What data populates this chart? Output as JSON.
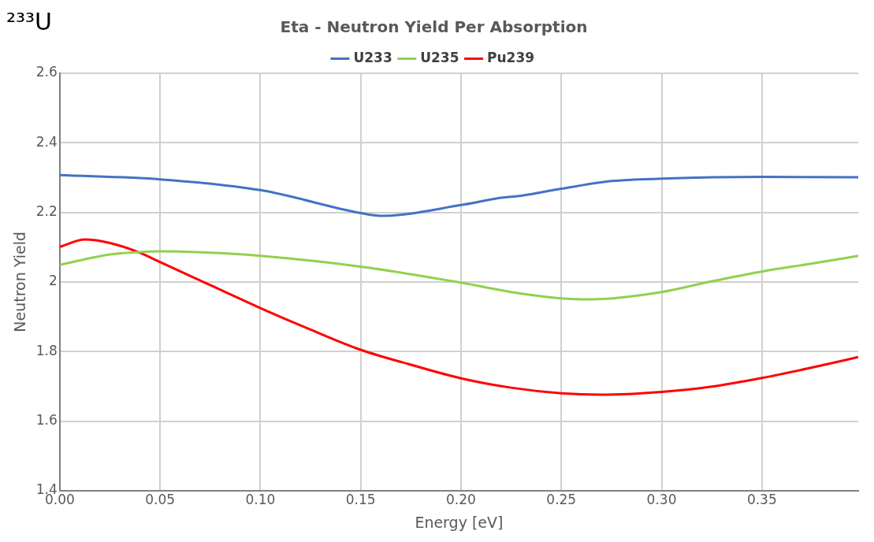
{
  "chart_data": {
    "type": "line",
    "title": "Eta - Neutron Yield Per Absorption",
    "xlabel": "Energy [eV]",
    "ylabel": "Neutron Yield",
    "annotations": [
      "²³³U"
    ],
    "xlim": [
      0,
      0.398
    ],
    "xticks": [
      {
        "value": 0,
        "label": "0.00"
      },
      {
        "value": 0.05,
        "label": "0.05"
      },
      {
        "value": 0.1,
        "label": "0.10"
      },
      {
        "value": 0.15,
        "label": "0.15"
      },
      {
        "value": 0.2,
        "label": "0.20"
      },
      {
        "value": 0.25,
        "label": "0.25"
      },
      {
        "value": 0.3,
        "label": "0.30"
      },
      {
        "value": 0.35,
        "label": "0.35"
      }
    ],
    "ylim": [
      1.4,
      2.6
    ],
    "yticks": [
      1.4,
      1.6,
      1.8,
      2,
      2.2,
      2.4,
      2.6
    ],
    "grid": true,
    "legend": "top",
    "marker": "none",
    "series": [
      {
        "name": "U233",
        "color": "#4472c4",
        "x": [
          0,
          0.05,
          0.1,
          0.15,
          0.16,
          0.2,
          0.22,
          0.23,
          0.25,
          0.275,
          0.3,
          0.35,
          0.398
        ],
        "values": [
          2.307,
          2.295,
          2.264,
          2.198,
          2.19,
          2.221,
          2.242,
          2.248,
          2.268,
          2.29,
          2.297,
          2.302,
          2.301
        ]
      },
      {
        "name": "U235",
        "color": "#92d050",
        "x": [
          0,
          0.025,
          0.04,
          0.05,
          0.075,
          0.1,
          0.15,
          0.2,
          0.225,
          0.25,
          0.265,
          0.3,
          0.325,
          0.35,
          0.375,
          0.398
        ],
        "values": [
          2.049,
          2.079,
          2.086,
          2.088,
          2.084,
          2.075,
          2.044,
          1.998,
          1.971,
          1.953,
          1.95,
          1.971,
          2.002,
          2.03,
          2.053,
          2.075
        ]
      },
      {
        "name": "Pu239",
        "color": "#ff0000",
        "x": [
          0,
          0.0125,
          0.025,
          0.04,
          0.05,
          0.075,
          0.1,
          0.125,
          0.15,
          0.175,
          0.2,
          0.225,
          0.25,
          0.27,
          0.3,
          0.325,
          0.35,
          0.375,
          0.398
        ],
        "values": [
          2.101,
          2.122,
          2.112,
          2.084,
          2.057,
          1.991,
          1.925,
          1.863,
          1.805,
          1.762,
          1.723,
          1.696,
          1.68,
          1.676,
          1.684,
          1.699,
          1.724,
          1.754,
          1.784
        ]
      }
    ]
  }
}
